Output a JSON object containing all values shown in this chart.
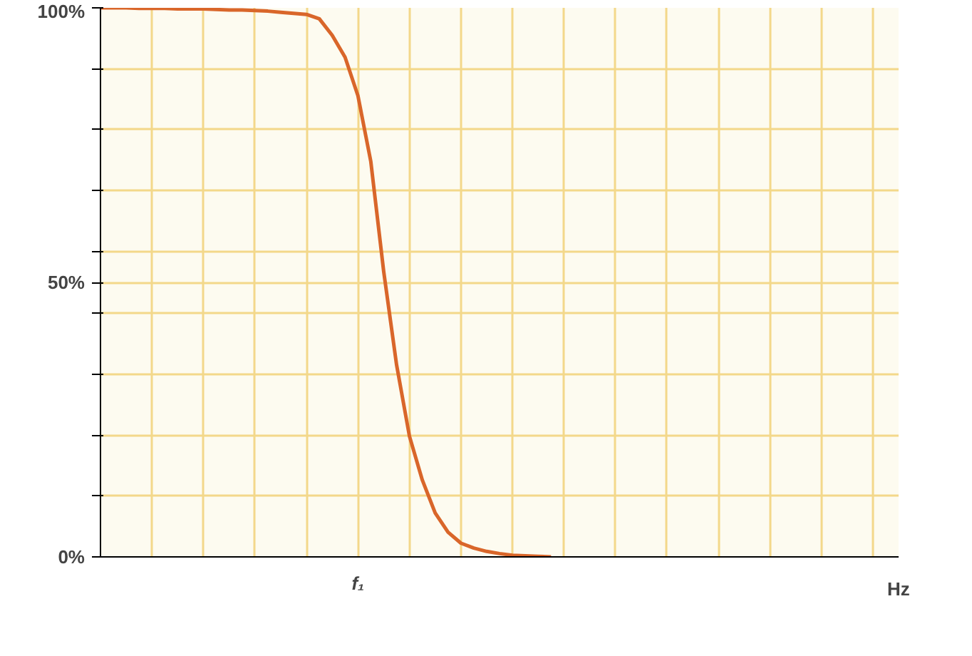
{
  "chart_data": {
    "type": "line",
    "xlabel": "Hz",
    "categories": [
      null,
      null,
      null,
      null,
      null,
      null,
      null,
      null,
      null,
      null,
      null,
      null,
      null,
      null,
      null,
      null,
      null,
      null,
      null,
      null,
      "f₁",
      null,
      null,
      null,
      null,
      null,
      null,
      null,
      null,
      null,
      null,
      null,
      null,
      null,
      null,
      null,
      null,
      null,
      null,
      null,
      null,
      null,
      null,
      null,
      null,
      null,
      null,
      null,
      null,
      null,
      null,
      null,
      null,
      null,
      null,
      null,
      null,
      null,
      null,
      null,
      null,
      null,
      null
    ],
    "series": [
      {
        "color": "#d9662a",
        "values": [
          100,
          100,
          100,
          99.9,
          99.9,
          99.9,
          99.8,
          99.8,
          99.8,
          99.7,
          99.6,
          99.6,
          99.5,
          99.4,
          99.2,
          99,
          98.8,
          98,
          95,
          91,
          84,
          72,
          52,
          35,
          22,
          14,
          8,
          4.5,
          2.5,
          1.6,
          1,
          0.6,
          0.3,
          0.2,
          0.1,
          0,
          null,
          null,
          null,
          null,
          null,
          null,
          null,
          null,
          null,
          null,
          null,
          null,
          null,
          null,
          null,
          null,
          null,
          null,
          null,
          null,
          null,
          null,
          null,
          null,
          null,
          null,
          null
        ]
      }
    ],
    "ylim": [
      0,
      100
    ],
    "yticks": [
      {
        "value": 0,
        "label": "0%"
      },
      {
        "value": 11.1,
        "label": null
      },
      {
        "value": 22.2,
        "label": null
      },
      {
        "value": 33.3,
        "label": null
      },
      {
        "value": 44.4,
        "label": null
      },
      {
        "value": 50,
        "label": "50%"
      },
      {
        "value": 55.6,
        "label": null
      },
      {
        "value": 66.7,
        "label": null
      },
      {
        "value": 77.8,
        "label": null
      },
      {
        "value": 88.9,
        "label": null
      },
      {
        "value": 100,
        "label": "100%"
      }
    ],
    "grid": true,
    "marker": "none",
    "line_style": "solid"
  }
}
